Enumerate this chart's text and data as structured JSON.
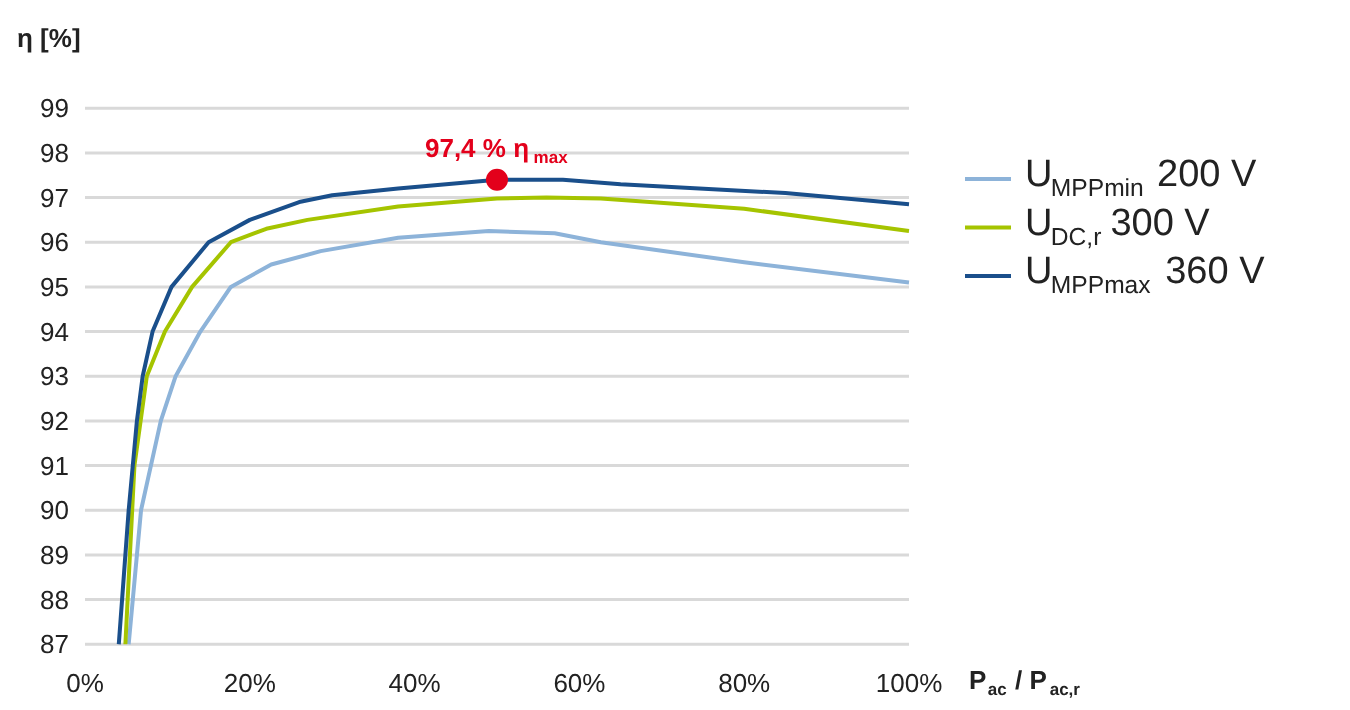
{
  "chart_data": {
    "type": "line",
    "xlabel": "P$_{ac}$ / P$_{ac,r}$",
    "ylabel": "η [%]",
    "xlim": [
      0,
      100
    ],
    "ylim": [
      87,
      99
    ],
    "xticks": [
      {
        "value": 0,
        "label": "0%"
      },
      {
        "value": 20,
        "label": "20%"
      },
      {
        "value": 40,
        "label": "40%"
      },
      {
        "value": 60,
        "label": "60%"
      },
      {
        "value": 80,
        "label": "80%"
      },
      {
        "value": 100,
        "label": "100%"
      }
    ],
    "yticks": [
      87,
      88,
      89,
      90,
      91,
      92,
      93,
      94,
      95,
      96,
      97,
      98,
      99
    ],
    "grid": "y",
    "legend": "right",
    "marker": "none",
    "line_style": "solid",
    "annotations": [
      {
        "text": "97,4 % η$_{max}$",
        "x": 50,
        "y": 97.4
      }
    ],
    "series": [
      {
        "name": "U$_{MPPmin}$ 200 V",
        "color": "#8db3d9",
        "x": [
          5.3,
          6.8,
          9.2,
          11,
          14,
          17.7,
          22.6,
          28.6,
          38,
          49,
          57,
          62.6,
          80,
          100
        ],
        "values": [
          87,
          90,
          92,
          93,
          94,
          95,
          95.5,
          95.8,
          96.1,
          96.25,
          96.2,
          96.0,
          95.55,
          95.1
        ]
      },
      {
        "name": "U$_{DC,r}$ 300 V",
        "color": "#a5c400",
        "x": [
          4.9,
          6,
          7.5,
          9.7,
          13,
          17.7,
          22,
          27,
          38,
          50,
          56,
          62.6,
          80,
          100
        ],
        "values": [
          87,
          91,
          93,
          94,
          95,
          96,
          96.3,
          96.5,
          96.8,
          96.98,
          97.0,
          96.98,
          96.75,
          96.25
        ]
      },
      {
        "name": "U$_{MPPmax}$ 360 V",
        "color": "#1a4f8b",
        "x": [
          4.1,
          5.3,
          6.3,
          7,
          8.2,
          10.5,
          15,
          20,
          26,
          30,
          38,
          50,
          58,
          65,
          85,
          100
        ],
        "values": [
          87,
          90,
          92,
          93,
          94,
          95,
          96,
          96.5,
          96.9,
          97.05,
          97.2,
          97.4,
          97.4,
          97.3,
          97.1,
          96.85
        ]
      }
    ]
  }
}
